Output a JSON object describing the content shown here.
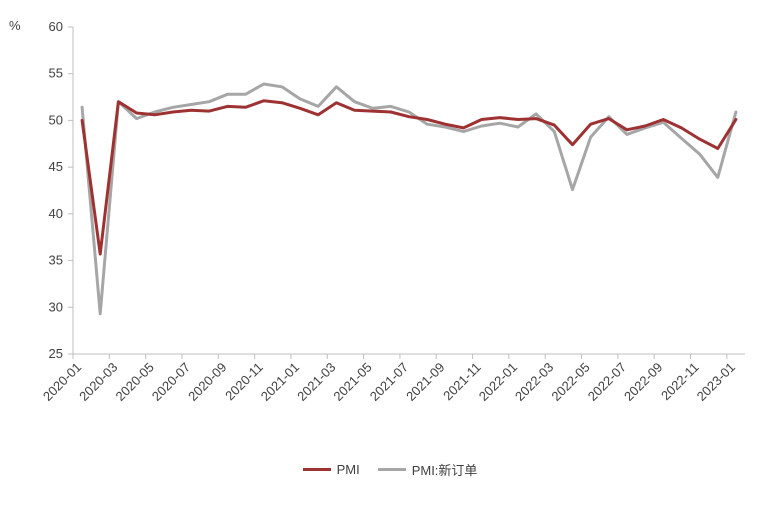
{
  "chart_data": {
    "type": "line",
    "unit": "%",
    "ylim": [
      25,
      60
    ],
    "yticks": [
      25,
      30,
      35,
      40,
      45,
      50,
      55,
      60
    ],
    "x": [
      "2020-01",
      "2020-02",
      "2020-03",
      "2020-04",
      "2020-05",
      "2020-06",
      "2020-07",
      "2020-08",
      "2020-09",
      "2020-10",
      "2020-11",
      "2020-12",
      "2021-01",
      "2021-02",
      "2021-03",
      "2021-04",
      "2021-05",
      "2021-06",
      "2021-07",
      "2021-08",
      "2021-09",
      "2021-10",
      "2021-11",
      "2021-12",
      "2022-01",
      "2022-02",
      "2022-03",
      "2022-04",
      "2022-05",
      "2022-06",
      "2022-07",
      "2022-08",
      "2022-09",
      "2022-10",
      "2022-11",
      "2022-12",
      "2023-01"
    ],
    "xtick_labels": [
      "2020-01",
      "2020-03",
      "2020-05",
      "2020-07",
      "2020-09",
      "2020-11",
      "2021-01",
      "2021-03",
      "2021-05",
      "2021-07",
      "2021-09",
      "2021-11",
      "2022-01",
      "2022-03",
      "2022-05",
      "2022-07",
      "2022-09",
      "2022-11",
      "2023-01"
    ],
    "grid": false,
    "legend_position": "bottom",
    "series": [
      {
        "name": "PMI",
        "color": "#9e3232",
        "values": [
          50.0,
          35.7,
          52.0,
          50.8,
          50.6,
          50.9,
          51.1,
          51.0,
          51.5,
          51.4,
          52.1,
          51.9,
          51.3,
          50.6,
          51.9,
          51.1,
          51.0,
          50.9,
          50.4,
          50.1,
          49.6,
          49.2,
          50.1,
          50.3,
          50.1,
          50.2,
          49.5,
          47.4,
          49.6,
          50.2,
          49.0,
          49.4,
          50.1,
          49.2,
          48.0,
          47.0,
          50.1
        ]
      },
      {
        "name": "PMI:新订单",
        "color": "#a6a6a6",
        "values": [
          51.4,
          29.3,
          52.0,
          50.2,
          50.9,
          51.4,
          51.7,
          52.0,
          52.8,
          52.8,
          53.9,
          53.6,
          52.3,
          51.5,
          53.6,
          52.0,
          51.3,
          51.5,
          50.9,
          49.6,
          49.3,
          48.8,
          49.4,
          49.7,
          49.3,
          50.7,
          48.8,
          42.6,
          48.2,
          50.4,
          48.5,
          49.2,
          49.8,
          48.1,
          46.4,
          43.9,
          50.9
        ]
      }
    ]
  }
}
